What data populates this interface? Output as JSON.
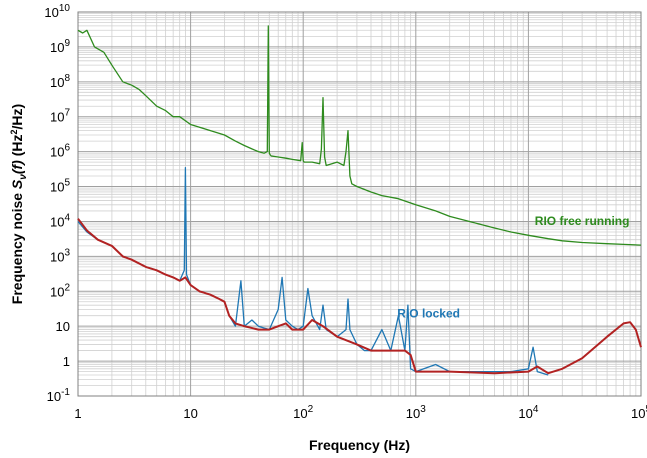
{
  "chart_data": {
    "type": "line",
    "x_scale": "log",
    "y_scale": "log",
    "xlim": [
      1,
      100000
    ],
    "ylim": [
      0.1,
      10000000000
    ],
    "grid": true,
    "xlabel": "Frequency (Hz)",
    "ylabel": {
      "prefix": "Frequency noise  ",
      "symbol": "S",
      "subscript": "ν",
      "arg": "(f)",
      "units_prefix": "  (Hz",
      "units_sup": "2",
      "units_suffix": "/Hz)"
    },
    "x_ticks": [
      {
        "value": 1,
        "label": "1"
      },
      {
        "value": 10,
        "label": "10"
      },
      {
        "value": 100,
        "label": "10",
        "sup": "2"
      },
      {
        "value": 1000,
        "label": "10",
        "sup": "3"
      },
      {
        "value": 10000,
        "label": "10",
        "sup": "4"
      },
      {
        "value": 100000,
        "label": "10",
        "sup": "5"
      }
    ],
    "y_ticks": [
      {
        "value": 0.1,
        "label": "10",
        "sup": "-1"
      },
      {
        "value": 1,
        "label": "1"
      },
      {
        "value": 10,
        "label": "10"
      },
      {
        "value": 100,
        "label": "10",
        "sup": "2"
      },
      {
        "value": 1000,
        "label": "10",
        "sup": "3"
      },
      {
        "value": 10000,
        "label": "10",
        "sup": "4"
      },
      {
        "value": 100000,
        "label": "10",
        "sup": "5"
      },
      {
        "value": 1000000,
        "label": "10",
        "sup": "6"
      },
      {
        "value": 10000000,
        "label": "10",
        "sup": "7"
      },
      {
        "value": 100000000,
        "label": "10",
        "sup": "8"
      },
      {
        "value": 1000000000,
        "label": "10",
        "sup": "9"
      },
      {
        "value": 10000000000,
        "label": "10",
        "sup": "10"
      }
    ],
    "series": [
      {
        "name": "RIO free running",
        "color": "#2e8b1e",
        "x": [
          1,
          1.1,
          1.2,
          1.4,
          1.7,
          2,
          2.5,
          3,
          3.5,
          4,
          5,
          6,
          7,
          8,
          10,
          12,
          15,
          20,
          25,
          30,
          35,
          40,
          45,
          48,
          49,
          50,
          51,
          52,
          60,
          70,
          80,
          95,
          98,
          100,
          102,
          110,
          120,
          140,
          145,
          150,
          155,
          160,
          180,
          200,
          230,
          240,
          250,
          260,
          270,
          300,
          400,
          500,
          700,
          1000,
          1500,
          2000,
          3000,
          5000,
          7000,
          10000,
          15000,
          20000,
          30000,
          50000,
          70000,
          100000
        ],
        "y": [
          3000000000,
          2500000000,
          3000000000,
          1000000000,
          700000000,
          300000000,
          100000000,
          80000000,
          60000000,
          40000000,
          20000000,
          15000000,
          10000000,
          10000000,
          6000000,
          5000000,
          4000000,
          3000000,
          2000000,
          1500000,
          1200000,
          1000000,
          900000,
          1000000,
          4000000000,
          900000,
          800000,
          750000,
          700000,
          650000,
          600000,
          550000,
          1800000,
          550000,
          500000,
          500000,
          500000,
          450000,
          1200000,
          35000000,
          700000,
          400000,
          450000,
          500000,
          400000,
          1000000,
          4000000,
          200000,
          120000,
          100000,
          70000,
          55000,
          45000,
          30000,
          20000,
          14000,
          10000,
          6500,
          5000,
          4000,
          3200,
          2800,
          2500,
          2300,
          2200,
          2100
        ]
      },
      {
        "name": "RIO locked",
        "color": "#1f77b4",
        "x": [
          1,
          1.2,
          1.5,
          2,
          2.5,
          3,
          4,
          5,
          6,
          7,
          8,
          8.8,
          9,
          9.2,
          10,
          12,
          15,
          18,
          20,
          22,
          25,
          28,
          30,
          35,
          40,
          50,
          60,
          65,
          70,
          80,
          90,
          100,
          110,
          120,
          140,
          150,
          160,
          200,
          240,
          250,
          260,
          300,
          350,
          400,
          500,
          600,
          700,
          800,
          850,
          900,
          1000,
          1500,
          2000,
          3000,
          5000,
          7000,
          10000,
          11000,
          12000,
          15000
        ],
        "y": [
          10000,
          5000,
          3000,
          2000,
          1000,
          800,
          500,
          400,
          300,
          250,
          200,
          400,
          350000,
          300,
          150,
          100,
          80,
          60,
          50,
          20,
          10,
          200,
          10,
          15,
          10,
          8,
          30,
          250,
          15,
          10,
          8,
          10,
          120,
          20,
          8,
          40,
          8,
          5,
          8,
          60,
          8,
          3,
          2,
          2,
          8,
          2,
          20,
          2,
          40,
          0.6,
          0.5,
          0.8,
          0.5,
          0.5,
          0.5,
          0.5,
          0.6,
          2.5,
          0.5,
          0.4
        ]
      },
      {
        "name": "",
        "color": "#b22222",
        "x": [
          1,
          1.2,
          1.5,
          2,
          2.5,
          3,
          4,
          5,
          6,
          7,
          8,
          9,
          10,
          12,
          15,
          18,
          20,
          22,
          25,
          30,
          40,
          50,
          60,
          70,
          80,
          100,
          120,
          150,
          200,
          300,
          400,
          500,
          600,
          700,
          800,
          900,
          1000,
          2000,
          5000,
          10000,
          12000,
          15000,
          20000,
          30000,
          50000,
          70000,
          80000,
          90000,
          100000
        ],
        "y": [
          12000,
          5500,
          3000,
          2000,
          1000,
          800,
          500,
          400,
          300,
          250,
          200,
          250,
          150,
          100,
          80,
          60,
          50,
          20,
          12,
          10,
          8,
          8,
          10,
          12,
          8,
          8,
          15,
          10,
          5,
          3,
          2,
          2,
          2,
          2,
          2,
          1.5,
          0.5,
          0.5,
          0.45,
          0.5,
          0.7,
          0.45,
          0.6,
          1.2,
          5,
          12,
          13,
          8,
          2.5
        ]
      }
    ],
    "annotations": [
      {
        "text": "RIO free running",
        "x": 30000,
        "y": 8000,
        "color": "#2e8b1e"
      },
      {
        "text": "RIO locked",
        "x": 1300,
        "y": 18,
        "color": "#1f77b4"
      }
    ]
  }
}
